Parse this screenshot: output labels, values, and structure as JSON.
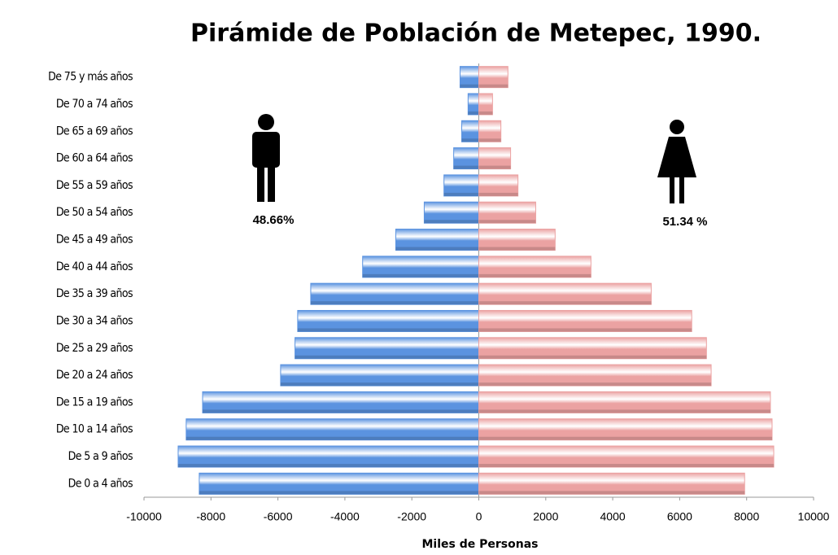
{
  "chart_data": {
    "type": "bar",
    "orientation": "horizontal",
    "stacked": true,
    "title": "Pirámide de Población de Metepec, 1990.",
    "x_label": "Miles de Personas",
    "annotations": [
      "48.66%",
      "51.34 %"
    ],
    "categories": [
      "De 75 y más años",
      "De 70 a 74 años",
      "De 65 a 69 años",
      "De 60 a 64 años",
      "De 55 a 59 años",
      "De 50 a 54 años",
      "De 45 a 49 años",
      "De 40 a 44 años",
      "De 35 a 39 años",
      "De 30 a 34 años",
      "De 25 a 29 años",
      "De 20 a 24 años",
      "De 15 a 19 años",
      "De 10 a 14 años",
      "De 5 a 9 años",
      "De 0 a 4 años"
    ],
    "series": [
      {
        "color": "#5b93e0",
        "values": [
          -560,
          -320,
          -510,
          -750,
          -1040,
          -1630,
          -2480,
          -3470,
          -5020,
          -5410,
          -5490,
          -5920,
          -8250,
          -8740,
          -8980,
          -8350
        ]
      },
      {
        "color": "#eba2a2",
        "values": [
          870,
          410,
          660,
          950,
          1170,
          1700,
          2280,
          3350,
          5150,
          6360,
          6800,
          6940,
          8710,
          8760,
          8810,
          7940
        ]
      }
    ],
    "xlim": [
      -10000,
      10000
    ],
    "xticks": [
      -10000,
      -8000,
      -6000,
      -4000,
      -2000,
      0,
      2000,
      4000,
      6000,
      8000,
      10000
    ]
  }
}
